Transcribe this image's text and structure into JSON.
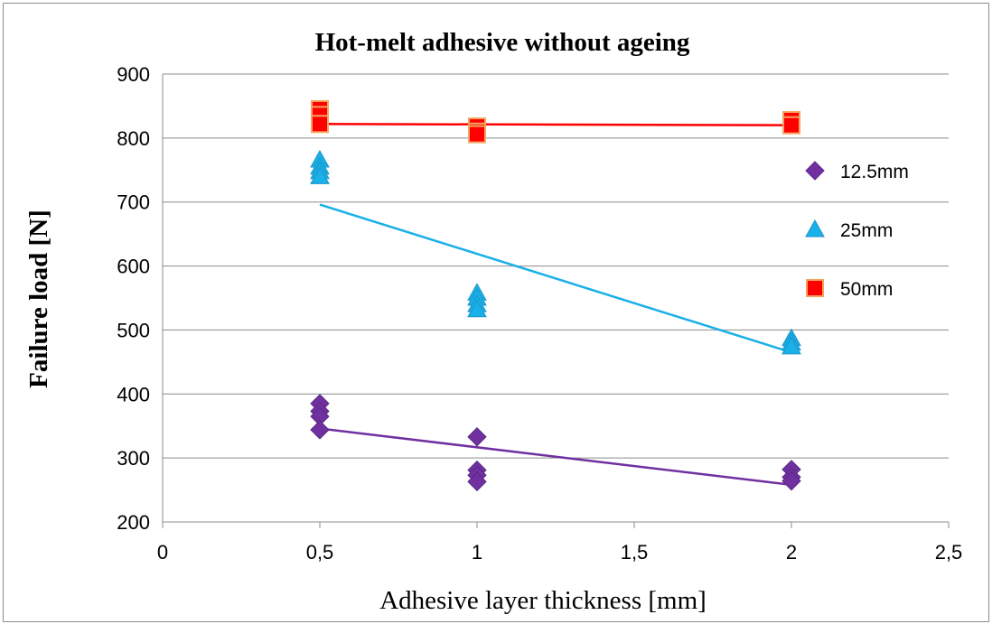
{
  "chart_data": {
    "type": "scatter",
    "title": "Hot-melt adhesive without ageing",
    "xlabel": "Adhesive layer thickness [mm]",
    "ylabel": "Failure load [N]",
    "xlim": [
      0,
      2.5
    ],
    "ylim": [
      200,
      900
    ],
    "x_ticks": [
      "0",
      "0,5",
      "1",
      "1,5",
      "2",
      "2,5"
    ],
    "y_ticks": [
      "200",
      "300",
      "400",
      "500",
      "600",
      "700",
      "800",
      "900"
    ],
    "grid": "horizontal",
    "legend_position": "right",
    "series": [
      {
        "name": "12.5mm",
        "marker": "diamond",
        "color": "#7030a0",
        "points": [
          [
            0.5,
            385
          ],
          [
            0.5,
            373
          ],
          [
            0.5,
            365
          ],
          [
            0.5,
            344
          ],
          [
            1,
            333
          ],
          [
            1,
            281
          ],
          [
            1,
            273
          ],
          [
            1,
            263
          ],
          [
            2,
            282
          ],
          [
            2,
            270
          ],
          [
            2,
            264
          ]
        ],
        "trendline": [
          [
            0.5,
            346
          ],
          [
            2,
            258
          ]
        ]
      },
      {
        "name": "25mm",
        "marker": "triangle",
        "color": "#1ab0e8",
        "points": [
          [
            0.5,
            766
          ],
          [
            0.5,
            755
          ],
          [
            0.5,
            748
          ],
          [
            0.5,
            740
          ],
          [
            1,
            558
          ],
          [
            1,
            550
          ],
          [
            1,
            540
          ],
          [
            1,
            532
          ],
          [
            2,
            487
          ],
          [
            2,
            480
          ],
          [
            2,
            474
          ]
        ],
        "trendline": [
          [
            0.5,
            696
          ],
          [
            2,
            465
          ]
        ]
      },
      {
        "name": "50mm",
        "marker": "square",
        "color": "#ff0000",
        "points": [
          [
            0.5,
            845
          ],
          [
            0.5,
            836
          ],
          [
            0.5,
            822
          ],
          [
            1,
            818
          ],
          [
            1,
            810
          ],
          [
            1,
            806
          ],
          [
            2,
            828
          ],
          [
            2,
            820
          ]
        ],
        "trendline": [
          [
            0.5,
            822
          ],
          [
            2,
            820
          ]
        ]
      }
    ]
  }
}
